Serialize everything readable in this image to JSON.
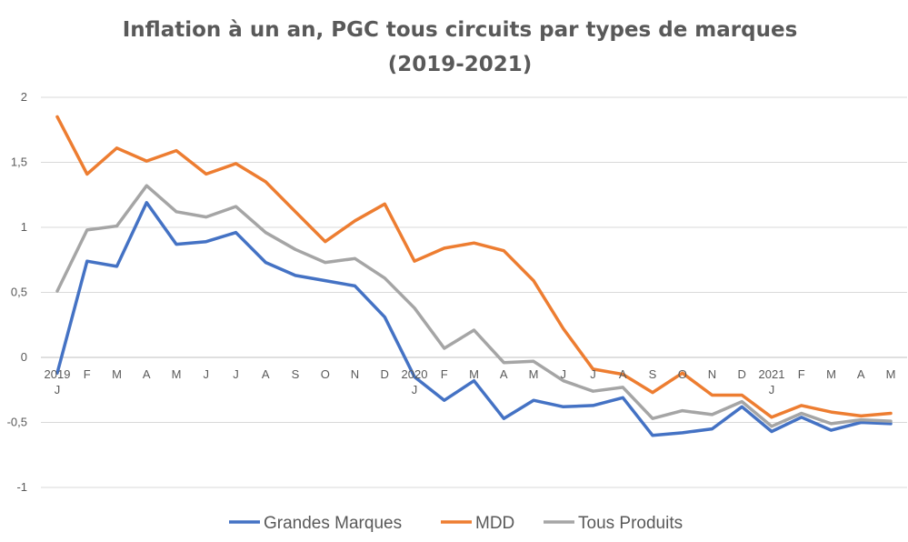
{
  "chart_data": {
    "type": "line",
    "title": [
      "Inflation à un an, PGC tous circuits par types de marques",
      "(2019-2021)"
    ],
    "xlabel": "",
    "ylabel": "",
    "ylim": [
      -1,
      2
    ],
    "yticks": [
      {
        "value": 2,
        "label": "2"
      },
      {
        "value": 1.5,
        "label": "1,5"
      },
      {
        "value": 1,
        "label": "1"
      },
      {
        "value": 0.5,
        "label": "0,5"
      },
      {
        "value": 0,
        "label": "0"
      },
      {
        "value": -0.5,
        "label": "-0,5"
      },
      {
        "value": -1,
        "label": "-1"
      }
    ],
    "grid": true,
    "legend_position": "bottom",
    "categories": [
      "J",
      "F",
      "M",
      "A",
      "M",
      "J",
      "J",
      "A",
      "S",
      "O",
      "N",
      "D",
      "J",
      "F",
      "M",
      "A",
      "M",
      "J",
      "J",
      "A",
      "S",
      "O",
      "N",
      "D",
      "J",
      "F",
      "M",
      "A",
      "M"
    ],
    "year_labels": [
      {
        "index": 0,
        "label": "2019"
      },
      {
        "index": 12,
        "label": "2020"
      },
      {
        "index": 24,
        "label": "2021"
      }
    ],
    "series": [
      {
        "name": "Grandes Marques",
        "color": "#4472C4",
        "values": [
          -0.12,
          0.74,
          0.7,
          1.19,
          0.87,
          0.89,
          0.96,
          0.73,
          0.63,
          0.59,
          0.55,
          0.31,
          -0.15,
          -0.33,
          -0.18,
          -0.47,
          -0.33,
          -0.38,
          -0.37,
          -0.31,
          -0.6,
          -0.58,
          -0.55,
          -0.38,
          -0.57,
          -0.46,
          -0.56,
          -0.5,
          -0.51
        ]
      },
      {
        "name": "MDD",
        "color": "#ED7D31",
        "values": [
          1.85,
          1.41,
          1.61,
          1.51,
          1.59,
          1.41,
          1.49,
          1.35,
          1.12,
          0.89,
          1.05,
          1.18,
          0.74,
          0.84,
          0.88,
          0.82,
          0.59,
          0.22,
          -0.09,
          -0.13,
          -0.27,
          -0.12,
          -0.29,
          -0.29,
          -0.46,
          -0.37,
          -0.42,
          -0.45,
          -0.43
        ]
      },
      {
        "name": "Tous Produits",
        "color": "#A5A5A5",
        "values": [
          0.51,
          0.98,
          1.01,
          1.32,
          1.12,
          1.08,
          1.16,
          0.96,
          0.83,
          0.73,
          0.76,
          0.61,
          0.38,
          0.07,
          0.21,
          -0.04,
          -0.03,
          -0.18,
          -0.26,
          -0.23,
          -0.47,
          -0.41,
          -0.44,
          -0.34,
          -0.53,
          -0.43,
          -0.51,
          -0.48,
          -0.49
        ]
      }
    ]
  }
}
